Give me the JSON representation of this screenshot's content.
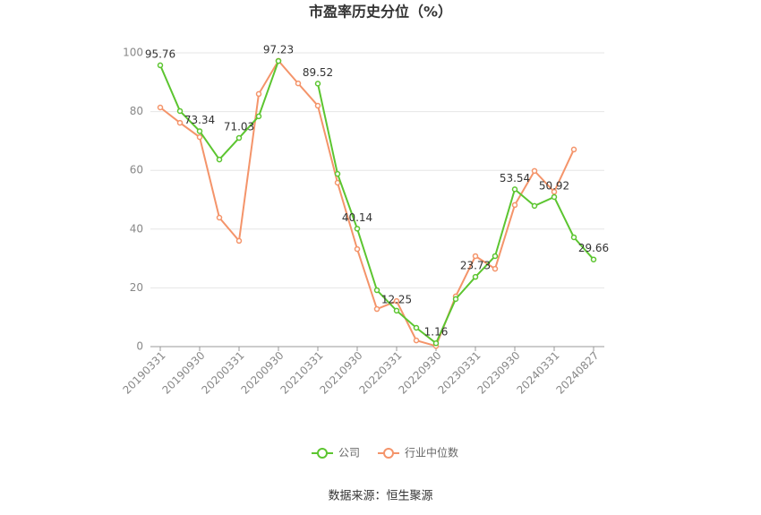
{
  "chart_data": {
    "type": "line",
    "title": "市盈率历史分位（%）",
    "source": "数据来源：恒生聚源",
    "categories": [
      "20190331",
      null,
      "20190930",
      null,
      "20200331",
      null,
      "20200930",
      null,
      "20210331",
      null,
      "20210930",
      null,
      "20220331",
      null,
      "20220930",
      null,
      "20230331",
      null,
      "20230930",
      null,
      "20240331",
      null,
      "20240827"
    ],
    "series": [
      {
        "name": "公司",
        "color": "#5cc530",
        "values": [
          95.76,
          80.2,
          73.34,
          63.7,
          71.03,
          78.4,
          97.23,
          null,
          89.52,
          58.8,
          40.14,
          19.2,
          12.25,
          6.4,
          1.16,
          16.2,
          23.73,
          30.8,
          53.54,
          47.9,
          50.92,
          37.2,
          29.66
        ],
        "value_labels": [
          "95.76",
          null,
          "73.34",
          null,
          "71.03",
          null,
          "97.23",
          null,
          "89.52",
          null,
          "40.14",
          null,
          "12.25",
          null,
          "1.16",
          null,
          "23.73",
          null,
          "53.54",
          null,
          "50.92",
          null,
          "29.66"
        ]
      },
      {
        "name": "行业中位数",
        "color": "#f4946a",
        "values": [
          81.4,
          76.2,
          71.3,
          43.9,
          36.0,
          86.0,
          97.3,
          89.6,
          82.0,
          55.8,
          33.2,
          12.8,
          15.5,
          2.1,
          0.2,
          17.1,
          30.8,
          26.5,
          48.2,
          59.8,
          52.7,
          67.1,
          null
        ]
      }
    ],
    "ylim": [
      0,
      100
    ],
    "yticks": [
      0,
      20,
      40,
      60,
      80,
      100
    ],
    "grid": true,
    "legend": "bottom"
  }
}
